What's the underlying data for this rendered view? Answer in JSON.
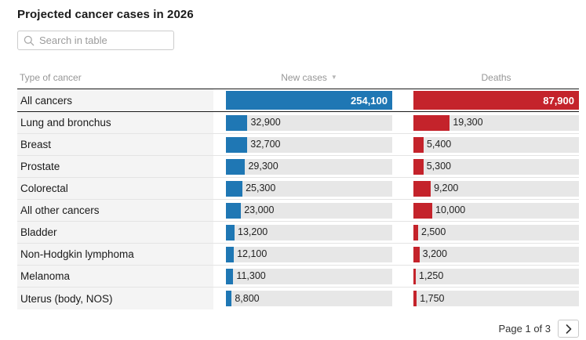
{
  "title": "Projected cancer cases in 2026",
  "search": {
    "placeholder": "Search in table"
  },
  "table": {
    "columns": [
      "Type of cancer",
      "New cases",
      "Deaths"
    ],
    "sorted_by": "New cases",
    "sort_direction": "descending"
  },
  "icons": {
    "search": "magnifying-glass",
    "sort_desc": "▼",
    "next_page": "chevron-right"
  },
  "colors": {
    "new_cases_bar": "#1f77b4",
    "deaths_bar": "#c4232b",
    "bar_track": "#e7e7e7",
    "row_label_bg": "#f4f4f4"
  },
  "pagination": {
    "label": "Page 1 of 3"
  },
  "chart_data": {
    "type": "table",
    "title": "Projected cancer cases in 2026",
    "columns": [
      "Type of cancer",
      "New cases",
      "Deaths"
    ],
    "bar_scaling": "each numeric column scaled to its column maximum",
    "rows": [
      {
        "label": "All cancers",
        "new_cases": 254100,
        "new_cases_label": "254,100",
        "deaths": 87900,
        "deaths_label": "87,900"
      },
      {
        "label": "Lung and bronchus",
        "new_cases": 32900,
        "new_cases_label": "32,900",
        "deaths": 19300,
        "deaths_label": "19,300"
      },
      {
        "label": "Breast",
        "new_cases": 32700,
        "new_cases_label": "32,700",
        "deaths": 5400,
        "deaths_label": "5,400"
      },
      {
        "label": "Prostate",
        "new_cases": 29300,
        "new_cases_label": "29,300",
        "deaths": 5300,
        "deaths_label": "5,300"
      },
      {
        "label": "Colorectal",
        "new_cases": 25300,
        "new_cases_label": "25,300",
        "deaths": 9200,
        "deaths_label": "9,200"
      },
      {
        "label": "All other cancers",
        "new_cases": 23000,
        "new_cases_label": "23,000",
        "deaths": 10000,
        "deaths_label": "10,000"
      },
      {
        "label": "Bladder",
        "new_cases": 13200,
        "new_cases_label": "13,200",
        "deaths": 2500,
        "deaths_label": "2,500"
      },
      {
        "label": "Non-Hodgkin lymphoma",
        "new_cases": 12100,
        "new_cases_label": "12,100",
        "deaths": 3200,
        "deaths_label": "3,200"
      },
      {
        "label": "Melanoma",
        "new_cases": 11300,
        "new_cases_label": "11,300",
        "deaths": 1250,
        "deaths_label": "1,250"
      },
      {
        "label": "Uterus (body, NOS)",
        "new_cases": 8800,
        "new_cases_label": "8,800",
        "deaths": 1750,
        "deaths_label": "1,750"
      }
    ]
  }
}
